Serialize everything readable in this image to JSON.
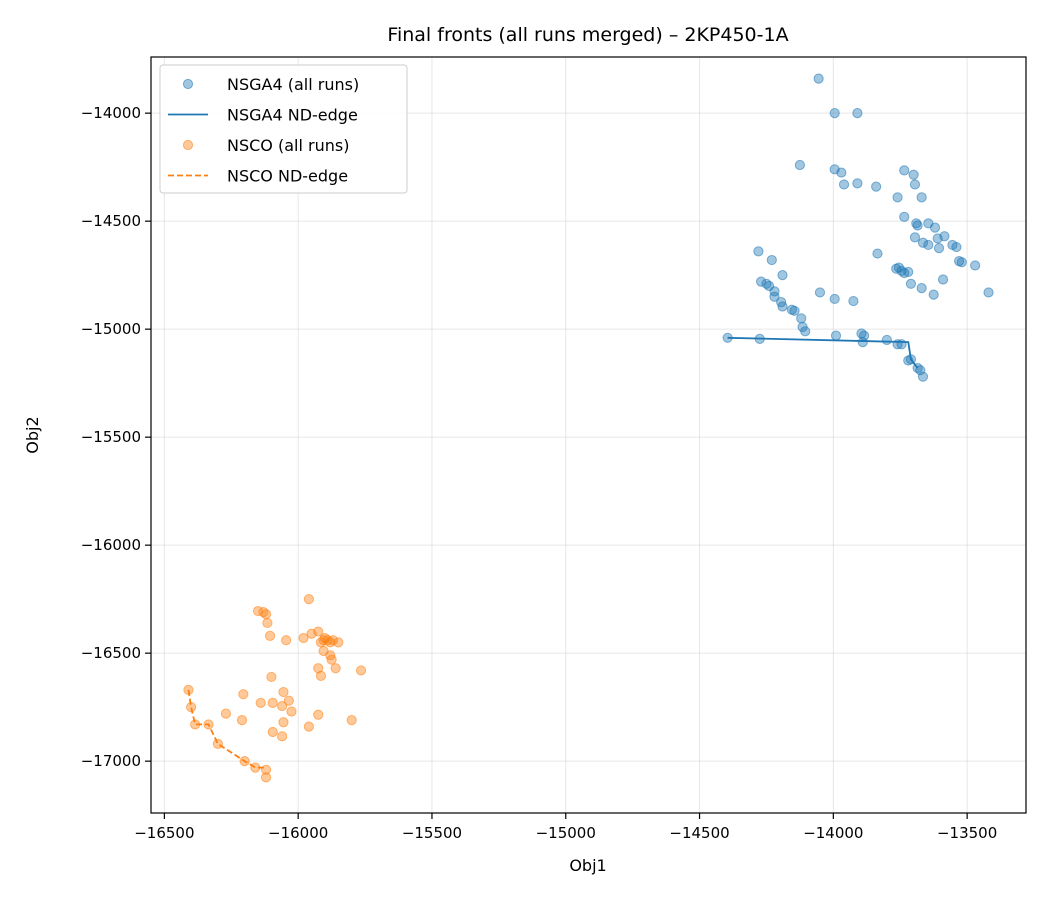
{
  "chart_data": {
    "type": "scatter",
    "title": "Final fronts (all runs merged) – 2KP450-1A",
    "xlabel": "Obj1",
    "ylabel": "Obj2",
    "xlim": [
      -16550,
      -13280
    ],
    "ylim": [
      -17240,
      -13740
    ],
    "xticks": [
      -16500,
      -16000,
      -15500,
      -15000,
      -14500,
      -14000,
      -13500
    ],
    "yticks": [
      -14000,
      -14500,
      -15000,
      -15500,
      -16000,
      -16500,
      -17000
    ],
    "xtick_labels": [
      "−16500",
      "−16000",
      "−15500",
      "−15000",
      "−14500",
      "−14000",
      "−13500"
    ],
    "ytick_labels": [
      "−14000",
      "−14500",
      "−15000",
      "−15500",
      "−16000",
      "−16500",
      "−17000"
    ],
    "grid": true,
    "legend_position": "top-left",
    "legend": [
      {
        "label": "NSGA4 (all runs)",
        "kind": "marker",
        "color": "#1f77b4"
      },
      {
        "label": "NSGA4 ND-edge",
        "kind": "line",
        "color": "#1f77b4"
      },
      {
        "label": "NSCO (all runs)",
        "kind": "marker",
        "color": "#ff7f0e"
      },
      {
        "label": "NSCO ND-edge",
        "kind": "dashed",
        "color": "#ff7f0e"
      }
    ],
    "series": [
      {
        "name": "NSGA4 (all runs)",
        "kind": "scatter",
        "color": "#1f77b4",
        "points": [
          [
            -14055,
            -13840
          ],
          [
            -13995,
            -14000
          ],
          [
            -13910,
            -14000
          ],
          [
            -14125,
            -14240
          ],
          [
            -13995,
            -14260
          ],
          [
            -13970,
            -14275
          ],
          [
            -13960,
            -14330
          ],
          [
            -13910,
            -14325
          ],
          [
            -13840,
            -14340
          ],
          [
            -13760,
            -14390
          ],
          [
            -13735,
            -14265
          ],
          [
            -13700,
            -14285
          ],
          [
            -13695,
            -14330
          ],
          [
            -13670,
            -14390
          ],
          [
            -13735,
            -14480
          ],
          [
            -13690,
            -14510
          ],
          [
            -13685,
            -14520
          ],
          [
            -13645,
            -14510
          ],
          [
            -13620,
            -14530
          ],
          [
            -13585,
            -14570
          ],
          [
            -13695,
            -14575
          ],
          [
            -13665,
            -14600
          ],
          [
            -13645,
            -14610
          ],
          [
            -13610,
            -14580
          ],
          [
            -13605,
            -14625
          ],
          [
            -13555,
            -14610
          ],
          [
            -13540,
            -14620
          ],
          [
            -13530,
            -14685
          ],
          [
            -13520,
            -14690
          ],
          [
            -13470,
            -14705
          ],
          [
            -13420,
            -14830
          ],
          [
            -14280,
            -14640
          ],
          [
            -14230,
            -14680
          ],
          [
            -14190,
            -14750
          ],
          [
            -13835,
            -14650
          ],
          [
            -13765,
            -14720
          ],
          [
            -13755,
            -14715
          ],
          [
            -13745,
            -14730
          ],
          [
            -13735,
            -14740
          ],
          [
            -13720,
            -14735
          ],
          [
            -13590,
            -14770
          ],
          [
            -13710,
            -14790
          ],
          [
            -13670,
            -14810
          ],
          [
            -13625,
            -14840
          ],
          [
            -14270,
            -14780
          ],
          [
            -14250,
            -14790
          ],
          [
            -14240,
            -14800
          ],
          [
            -14220,
            -14825
          ],
          [
            -14220,
            -14850
          ],
          [
            -14195,
            -14875
          ],
          [
            -14190,
            -14895
          ],
          [
            -14155,
            -14910
          ],
          [
            -14145,
            -14915
          ],
          [
            -14120,
            -14950
          ],
          [
            -14115,
            -14990
          ],
          [
            -14105,
            -15010
          ],
          [
            -14050,
            -14830
          ],
          [
            -13995,
            -14860
          ],
          [
            -13925,
            -14870
          ],
          [
            -14395,
            -15040
          ],
          [
            -14275,
            -15045
          ],
          [
            -13990,
            -15030
          ],
          [
            -13895,
            -15020
          ],
          [
            -13885,
            -15030
          ],
          [
            -13890,
            -15060
          ],
          [
            -13800,
            -15050
          ],
          [
            -13760,
            -15070
          ],
          [
            -13745,
            -15070
          ],
          [
            -13720,
            -15145
          ],
          [
            -13710,
            -15140
          ],
          [
            -13685,
            -15180
          ],
          [
            -13675,
            -15190
          ],
          [
            -13665,
            -15220
          ]
        ]
      },
      {
        "name": "NSGA4 ND-edge",
        "kind": "line",
        "color": "#1f77b4",
        "points": [
          [
            -14395,
            -15040
          ],
          [
            -13720,
            -15060
          ],
          [
            -13710,
            -15140
          ],
          [
            -13685,
            -15180
          ]
        ]
      },
      {
        "name": "NSCO (all runs)",
        "kind": "scatter",
        "color": "#ff7f0e",
        "points": [
          [
            -15960,
            -16250
          ],
          [
            -16150,
            -16305
          ],
          [
            -16130,
            -16310
          ],
          [
            -16120,
            -16320
          ],
          [
            -16115,
            -16360
          ],
          [
            -16105,
            -16420
          ],
          [
            -16045,
            -16440
          ],
          [
            -15980,
            -16430
          ],
          [
            -15950,
            -16410
          ],
          [
            -15925,
            -16400
          ],
          [
            -15915,
            -16450
          ],
          [
            -15905,
            -16440
          ],
          [
            -15900,
            -16430
          ],
          [
            -15890,
            -16440
          ],
          [
            -15880,
            -16450
          ],
          [
            -15870,
            -16440
          ],
          [
            -15850,
            -16450
          ],
          [
            -15905,
            -16490
          ],
          [
            -15880,
            -16510
          ],
          [
            -15875,
            -16530
          ],
          [
            -15860,
            -16570
          ],
          [
            -15925,
            -16570
          ],
          [
            -15915,
            -16605
          ],
          [
            -15765,
            -16580
          ],
          [
            -16100,
            -16610
          ],
          [
            -16055,
            -16680
          ],
          [
            -16205,
            -16690
          ],
          [
            -16410,
            -16670
          ],
          [
            -16400,
            -16750
          ],
          [
            -16035,
            -16720
          ],
          [
            -16140,
            -16730
          ],
          [
            -16095,
            -16730
          ],
          [
            -16060,
            -16745
          ],
          [
            -16025,
            -16770
          ],
          [
            -16270,
            -16780
          ],
          [
            -15925,
            -16785
          ],
          [
            -15800,
            -16810
          ],
          [
            -16210,
            -16810
          ],
          [
            -16055,
            -16820
          ],
          [
            -16385,
            -16830
          ],
          [
            -16335,
            -16830
          ],
          [
            -15960,
            -16840
          ],
          [
            -16095,
            -16865
          ],
          [
            -16060,
            -16885
          ],
          [
            -16300,
            -16920
          ],
          [
            -16200,
            -17000
          ],
          [
            -16160,
            -17030
          ],
          [
            -16120,
            -17040
          ],
          [
            -16120,
            -17075
          ]
        ]
      },
      {
        "name": "NSCO ND-edge",
        "kind": "dashed",
        "color": "#ff7f0e",
        "points": [
          [
            -16410,
            -16670
          ],
          [
            -16400,
            -16750
          ],
          [
            -16385,
            -16830
          ],
          [
            -16335,
            -16830
          ],
          [
            -16300,
            -16920
          ],
          [
            -16200,
            -17000
          ],
          [
            -16160,
            -17030
          ],
          [
            -16120,
            -17030
          ]
        ]
      }
    ]
  }
}
